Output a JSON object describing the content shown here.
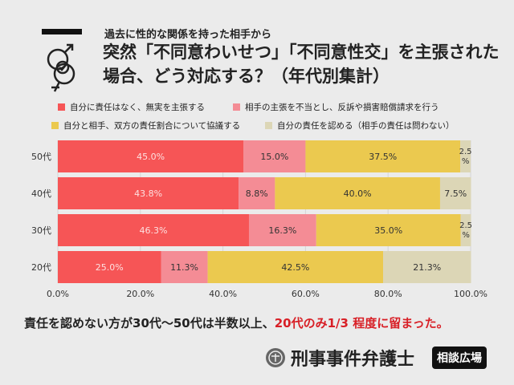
{
  "header": {
    "subtitle": "過去に性的な関係を持った相手から",
    "title": "突然「不同意わいせつ」「不同意性交」を主張された場合、どう対応する？（年代別集計）",
    "icon": "gender-symbols-check-icon"
  },
  "chart_data": {
    "type": "bar",
    "orientation": "horizontal",
    "stacked": true,
    "categories": [
      "50代",
      "40代",
      "30代",
      "20代"
    ],
    "series": [
      {
        "name": "自分に責任はなく、無実を主張する",
        "color": "#f65556",
        "values": [
          45.0,
          43.8,
          46.3,
          25.0
        ]
      },
      {
        "name": "相手の主張を不当とし、反訴や損害賠償請求を行う",
        "color": "#f48c95",
        "values": [
          15.0,
          8.8,
          16.3,
          11.3
        ]
      },
      {
        "name": "自分と相手、双方の責任割合について協議する",
        "color": "#ebc94f",
        "values": [
          37.5,
          40.0,
          35.0,
          42.5
        ]
      },
      {
        "name": "自分の責任を認める（相手の責任は問わない）",
        "color": "#dcd6b6",
        "values": [
          2.5,
          7.5,
          2.5,
          21.3
        ]
      }
    ],
    "xlim": [
      0,
      100
    ],
    "xticks": [
      "0.0%",
      "20.0%",
      "40.0%",
      "60.0%",
      "80.0%",
      "100.0%"
    ],
    "grid": true,
    "legend": "top"
  },
  "note": {
    "black": "責任を認めない方が30代〜50代は半数以上、",
    "red": "20代のみ1/3 程度に留まった。"
  },
  "brand": {
    "name": "刑事事件弁護士",
    "badge": "相談広場",
    "emblem": "scales-emblem-icon"
  }
}
